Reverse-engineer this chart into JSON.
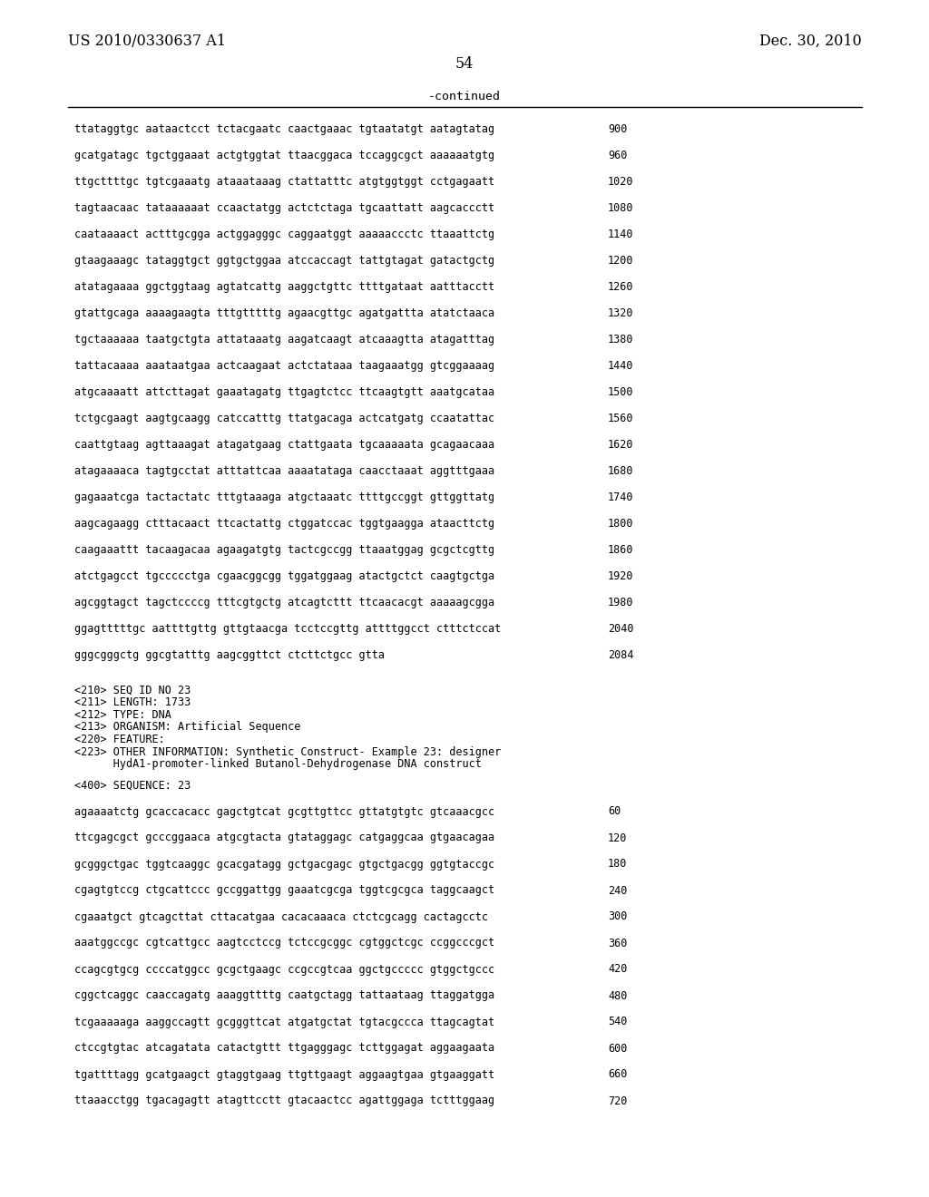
{
  "header_left": "US 2010/0330637 A1",
  "header_right": "Dec. 30, 2010",
  "page_number": "54",
  "continued_label": "-continued",
  "background_color": "#ffffff",
  "text_color": "#000000",
  "sequence_lines_top": [
    {
      "seq": "ttataggtgc aataactcct tctacgaatc caactgaaac tgtaatatgt aatagtatag",
      "num": "900"
    },
    {
      "seq": "gcatgatagc tgctggaaat actgtggtat ttaacggaca tccaggcgct aaaaaatgtg",
      "num": "960"
    },
    {
      "seq": "ttgcttttgc tgtcgaaatg ataaataaag ctattatttc atgtggtggt cctgagaatt",
      "num": "1020"
    },
    {
      "seq": "tagtaacaac tataaaaaat ccaactatgg actctctaga tgcaattatt aagcaccctt",
      "num": "1080"
    },
    {
      "seq": "caataaaact actttgcgga actggagggc caggaatggt aaaaaccctc ttaaattctg",
      "num": "1140"
    },
    {
      "seq": "gtaagaaagc tataggtgct ggtgctggaa atccaccagt tattgtagat gatactgctg",
      "num": "1200"
    },
    {
      "seq": "atatagaaaa ggctggtaag agtatcattg aaggctgttc ttttgataat aatttacctt",
      "num": "1260"
    },
    {
      "seq": "gtattgcaga aaaagaagta tttgtttttg agaacgttgc agatgattta atatctaaca",
      "num": "1320"
    },
    {
      "seq": "tgctaaaaaa taatgctgta attataaatg aagatcaagt atcaaagtta atagatttag",
      "num": "1380"
    },
    {
      "seq": "tattacaaaa aaataatgaa actcaagaat actctataaa taagaaatgg gtcggaaaag",
      "num": "1440"
    },
    {
      "seq": "atgcaaaatt attcttagat gaaatagatg ttgagtctcc ttcaagtgtt aaatgcataa",
      "num": "1500"
    },
    {
      "seq": "tctgcgaagt aagtgcaagg catccatttg ttatgacaga actcatgatg ccaatattac",
      "num": "1560"
    },
    {
      "seq": "caattgtaag agttaaagat atagatgaag ctattgaata tgcaaaaata gcagaacaaa",
      "num": "1620"
    },
    {
      "seq": "atagaaaaca tagtgcctat atttattcaa aaaatataga caacctaaat aggtttgaaa",
      "num": "1680"
    },
    {
      "seq": "gagaaatcga tactactatc tttgtaaaga atgctaaatc ttttgccggt gttggttatg",
      "num": "1740"
    },
    {
      "seq": "aagcagaagg ctttacaact ttcactattg ctggatccac tggtgaagga ataacttctg",
      "num": "1800"
    },
    {
      "seq": "caagaaattt tacaagacaa agaagatgtg tactcgccgg ttaaatggag gcgctcgttg",
      "num": "1860"
    },
    {
      "seq": "atctgagcct tgccccctga cgaacggcgg tggatggaag atactgctct caagtgctga",
      "num": "1920"
    },
    {
      "seq": "agcggtagct tagctccccg tttcgtgctg atcagtcttt ttcaacacgt aaaaagcgga",
      "num": "1980"
    },
    {
      "seq": "ggagtttttgc aattttgttg gttgtaacga tcctccgttg attttggcct ctttctccat",
      "num": "2040"
    },
    {
      "seq": "gggcgggctg ggcgtatttg aagcggttct ctcttctgcc gtta",
      "num": "2084"
    }
  ],
  "metadata_lines": [
    "<210> SEQ ID NO 23",
    "<211> LENGTH: 1733",
    "<212> TYPE: DNA",
    "<213> ORGANISM: Artificial Sequence",
    "<220> FEATURE:",
    "<223> OTHER INFORMATION: Synthetic Construct- Example 23: designer",
    "      HydA1-promoter-linked Butanol-Dehydrogenase DNA construct"
  ],
  "sequence_label": "<400> SEQUENCE: 23",
  "sequence_lines_bottom": [
    {
      "seq": "agaaaatctg gcaccacacc gagctgtcat gcgttgttcc gttatgtgtc gtcaaacgcc",
      "num": "60"
    },
    {
      "seq": "ttcgagcgct gcccggaaca atgcgtacta gtataggagc catgaggcaa gtgaacagaa",
      "num": "120"
    },
    {
      "seq": "gcgggctgac tggtcaaggc gcacgatagg gctgacgagc gtgctgacgg ggtgtaccgc",
      "num": "180"
    },
    {
      "seq": "cgagtgtccg ctgcattccc gccggattgg gaaatcgcga tggtcgcgca taggcaagct",
      "num": "240"
    },
    {
      "seq": "cgaaatgct gtcagcttat cttacatgaa cacacaaaca ctctcgcagg cactagcctc",
      "num": "300"
    },
    {
      "seq": "aaatggccgc cgtcattgcc aagtcctccg tctccgcggc cgtggctcgc ccggcccgct",
      "num": "360"
    },
    {
      "seq": "ccagcgtgcg ccccatggcc gcgctgaagc ccgccgtcaa ggctgccccc gtggctgccc",
      "num": "420"
    },
    {
      "seq": "cggctcaggc caaccagatg aaaggttttg caatgctagg tattaataag ttaggatgga",
      "num": "480"
    },
    {
      "seq": "tcgaaaaaga aaggccagtt gcgggttcat atgatgctat tgtacgccca ttagcagtat",
      "num": "540"
    },
    {
      "seq": "ctccgtgtac atcagatata catactgttt ttgagggagc tcttggagat aggaagaata",
      "num": "600"
    },
    {
      "seq": "tgattttagg gcatgaagct gtaggtgaag ttgttgaagt aggaagtgaa gtgaaggatt",
      "num": "660"
    },
    {
      "seq": "ttaaacctgg tgacagagtt atagttcctt gtacaactcc agattggaga tctttggaag",
      "num": "720"
    }
  ]
}
